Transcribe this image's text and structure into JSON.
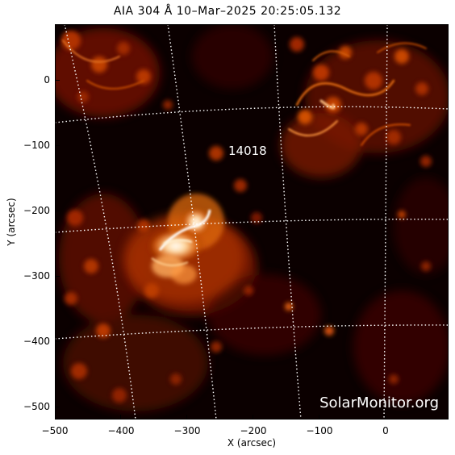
{
  "title": "AIA 304 Å 10–Mar–2025  20:25:05.132",
  "active_region": "14018",
  "watermark": "SolarMonitor.org",
  "axes": {
    "xlabel": "X (arcsec)",
    "ylabel": "Y (arcsec)",
    "xlim": [
      -500,
      100
    ],
    "ylim": [
      -520,
      85
    ],
    "xticks": [
      "−500",
      "−400",
      "−300",
      "−200",
      "−100",
      "0"
    ],
    "yticks": [
      "0",
      "−100",
      "−200",
      "−300",
      "−400",
      "−500"
    ]
  },
  "colors": {
    "colormap": [
      "#000000",
      "#3a0000",
      "#7a1500",
      "#b83a00",
      "#e07020",
      "#ffb060",
      "#ffffff"
    ],
    "grid": "#ffffff"
  }
}
